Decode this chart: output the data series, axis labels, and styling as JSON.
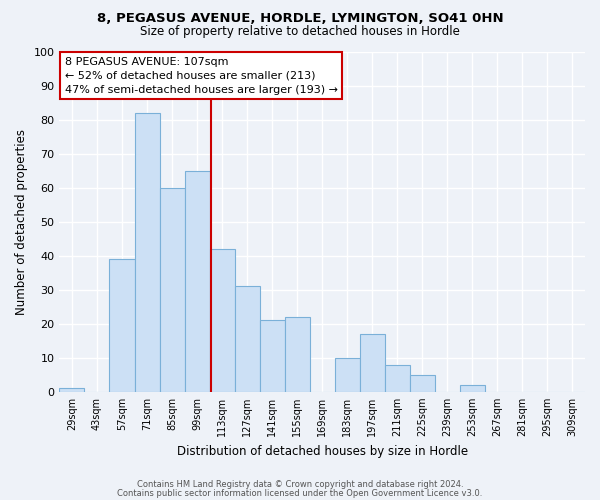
{
  "title1": "8, PEGASUS AVENUE, HORDLE, LYMINGTON, SO41 0HN",
  "title2": "Size of property relative to detached houses in Hordle",
  "xlabel": "Distribution of detached houses by size in Hordle",
  "ylabel": "Number of detached properties",
  "bin_labels": [
    "29sqm",
    "43sqm",
    "57sqm",
    "71sqm",
    "85sqm",
    "99sqm",
    "113sqm",
    "127sqm",
    "141sqm",
    "155sqm",
    "169sqm",
    "183sqm",
    "197sqm",
    "211sqm",
    "225sqm",
    "239sqm",
    "253sqm",
    "267sqm",
    "281sqm",
    "295sqm",
    "309sqm"
  ],
  "bin_values": [
    1,
    0,
    39,
    82,
    60,
    65,
    42,
    31,
    21,
    22,
    0,
    10,
    17,
    8,
    5,
    0,
    2,
    0,
    0,
    0,
    0
  ],
  "bar_color": "#cce0f5",
  "bar_edge_color": "#7ab0d8",
  "vline_pos": 5.57,
  "annotation_title": "8 PEGASUS AVENUE: 107sqm",
  "annotation_line1": "← 52% of detached houses are smaller (213)",
  "annotation_line2": "47% of semi-detached houses are larger (193) →",
  "annotation_box_color": "#ffffff",
  "annotation_box_edge_color": "#cc0000",
  "vline_color": "#cc0000",
  "ylim": [
    0,
    100
  ],
  "yticks": [
    0,
    10,
    20,
    30,
    40,
    50,
    60,
    70,
    80,
    90,
    100
  ],
  "footer1": "Contains HM Land Registry data © Crown copyright and database right 2024.",
  "footer2": "Contains public sector information licensed under the Open Government Licence v3.0.",
  "background_color": "#eef2f8",
  "grid_color": "#ffffff"
}
